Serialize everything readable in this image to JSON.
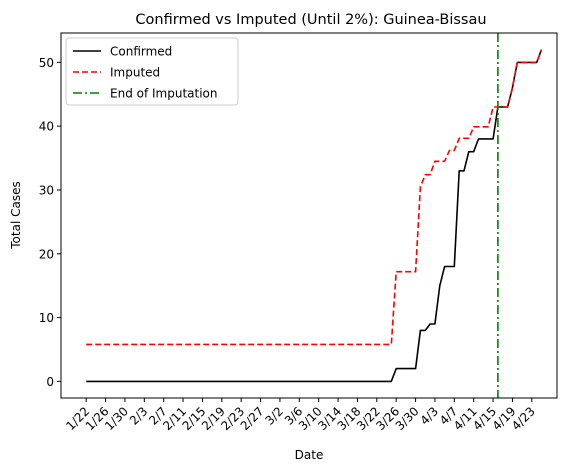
{
  "chart_data": {
    "type": "line",
    "title": "Confirmed vs Imputed (Until 2%): Guinea-Bissau",
    "xlabel": "Date",
    "ylabel": "Total Cases",
    "x_start_label": "1/22",
    "xlim_days": [
      -5.2,
      97.2
    ],
    "ylim": [
      -2.6,
      54.6
    ],
    "yticks": [
      0,
      10,
      20,
      30,
      40,
      50
    ],
    "xtick_labels": [
      "1/22",
      "1/26",
      "1/30",
      "2/3",
      "2/7",
      "2/11",
      "2/15",
      "2/19",
      "2/23",
      "2/27",
      "3/2",
      "3/6",
      "3/10",
      "3/14",
      "3/18",
      "3/22",
      "3/26",
      "3/30",
      "4/3",
      "4/7",
      "4/11",
      "4/15",
      "4/19",
      "4/23"
    ],
    "grid": false,
    "legend": {
      "position": "top-left"
    },
    "series": [
      {
        "name": "Confirmed",
        "color": "#000000",
        "style": "solid",
        "points": [
          [
            0,
            0
          ],
          [
            63,
            0
          ],
          [
            64,
            2
          ],
          [
            68,
            2
          ],
          [
            69,
            8
          ],
          [
            70,
            8
          ],
          [
            71,
            9
          ],
          [
            72,
            9
          ],
          [
            73,
            15
          ],
          [
            74,
            18
          ],
          [
            76,
            18
          ],
          [
            77,
            33
          ],
          [
            78,
            33
          ],
          [
            79,
            36
          ],
          [
            80,
            36
          ],
          [
            81,
            38
          ],
          [
            84,
            38
          ],
          [
            85,
            43
          ],
          [
            87,
            43
          ],
          [
            88,
            46
          ],
          [
            89,
            50
          ],
          [
            93,
            50
          ],
          [
            94,
            52
          ]
        ]
      },
      {
        "name": "Imputed",
        "color": "#ff0000",
        "style": "dashed",
        "points": [
          [
            0,
            5.8
          ],
          [
            63,
            5.8
          ],
          [
            64,
            17.2
          ],
          [
            68,
            17.2
          ],
          [
            69,
            30.5
          ],
          [
            70,
            32.4
          ],
          [
            71,
            32.4
          ],
          [
            72,
            34.5
          ],
          [
            73,
            34.5
          ],
          [
            74,
            34.5
          ],
          [
            75,
            36.2
          ],
          [
            76,
            36.2
          ],
          [
            77,
            38.1
          ],
          [
            78,
            38.1
          ],
          [
            79,
            38.1
          ],
          [
            80,
            39.9
          ],
          [
            83,
            39.9
          ],
          [
            84,
            43
          ],
          [
            87,
            43
          ],
          [
            88,
            46
          ],
          [
            89,
            50
          ],
          [
            93,
            50
          ],
          [
            94,
            52
          ]
        ]
      }
    ],
    "vline": {
      "name": "End of Imputation",
      "x": 85,
      "color": "#008000",
      "style": "dashdot"
    }
  }
}
